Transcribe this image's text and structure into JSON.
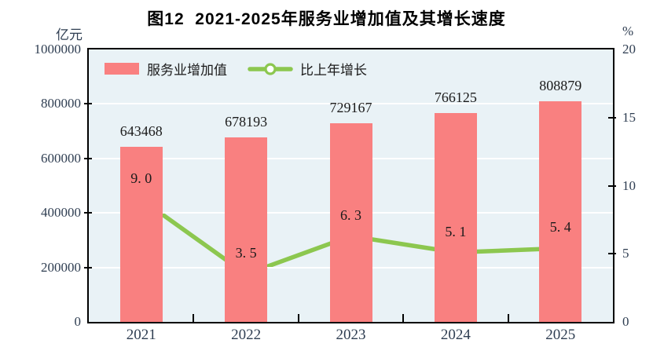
{
  "chart_data": {
    "type": "bar",
    "combo": "bar+line",
    "title": "图12  2021-2025年服务业增加值及其增长速度",
    "categories": [
      "2021",
      "2022",
      "2023",
      "2024",
      "2025"
    ],
    "series": [
      {
        "name": "服务业增加值",
        "type": "bar",
        "axis": "left",
        "values": [
          643468,
          678193,
          729167,
          766125,
          808879
        ],
        "labels": [
          "643468",
          "678193",
          "729167",
          "766125",
          "808879"
        ],
        "color": "#f98080"
      },
      {
        "name": "比上年增长",
        "type": "line",
        "axis": "right",
        "values": [
          9.0,
          3.5,
          6.3,
          5.1,
          5.4
        ],
        "labels": [
          "9. 0",
          "3. 5",
          "6. 3",
          "5. 1",
          "5. 4"
        ],
        "color": "#8cc74f",
        "marker": "circle-white-fill"
      }
    ],
    "left_axis": {
      "unit": "亿元",
      "min": 0,
      "max": 1000000,
      "ticks": [
        0,
        200000,
        400000,
        600000,
        800000,
        1000000
      ],
      "tick_labels": [
        "0",
        "200000",
        "400000",
        "600000",
        "800000",
        "1000000"
      ]
    },
    "right_axis": {
      "unit": "%",
      "min": 0,
      "max": 20,
      "ticks": [
        0,
        5,
        10,
        15,
        20
      ],
      "tick_labels": [
        "0",
        "5",
        "10",
        "15",
        "20"
      ]
    },
    "grid": true,
    "legend_position": "top-left",
    "colors": {
      "plot_background": "#e9f2f6",
      "plot_border": "#000000",
      "gridline": "#ffffff",
      "axis_text": "#2f3e52",
      "data_label_text": "#1a1a1a",
      "bar_fill": "#f98080",
      "line_stroke": "#8cc74f",
      "marker_fill": "#ffffff"
    }
  }
}
